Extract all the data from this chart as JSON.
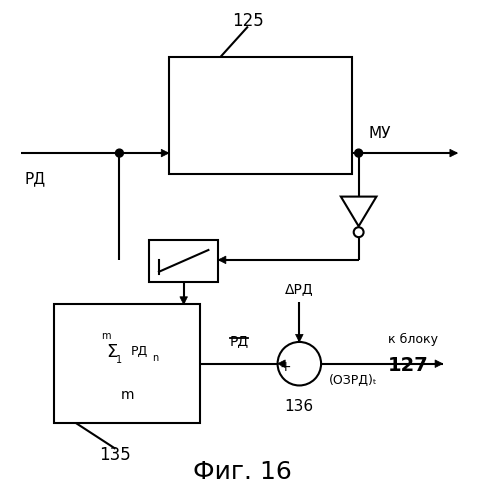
{
  "bg_color": "#ffffff",
  "line_color": "#000000",
  "title": "Фиг. 16",
  "label_RD": "РД",
  "label_MU": "МУ",
  "label_125": "125",
  "label_135": "135",
  "label_136": "136",
  "label_127": "127",
  "label_delta_RD": "ΔРД",
  "label_OZRD": "(ОЗРД)ₜ",
  "label_k_bloku": "к блоку"
}
